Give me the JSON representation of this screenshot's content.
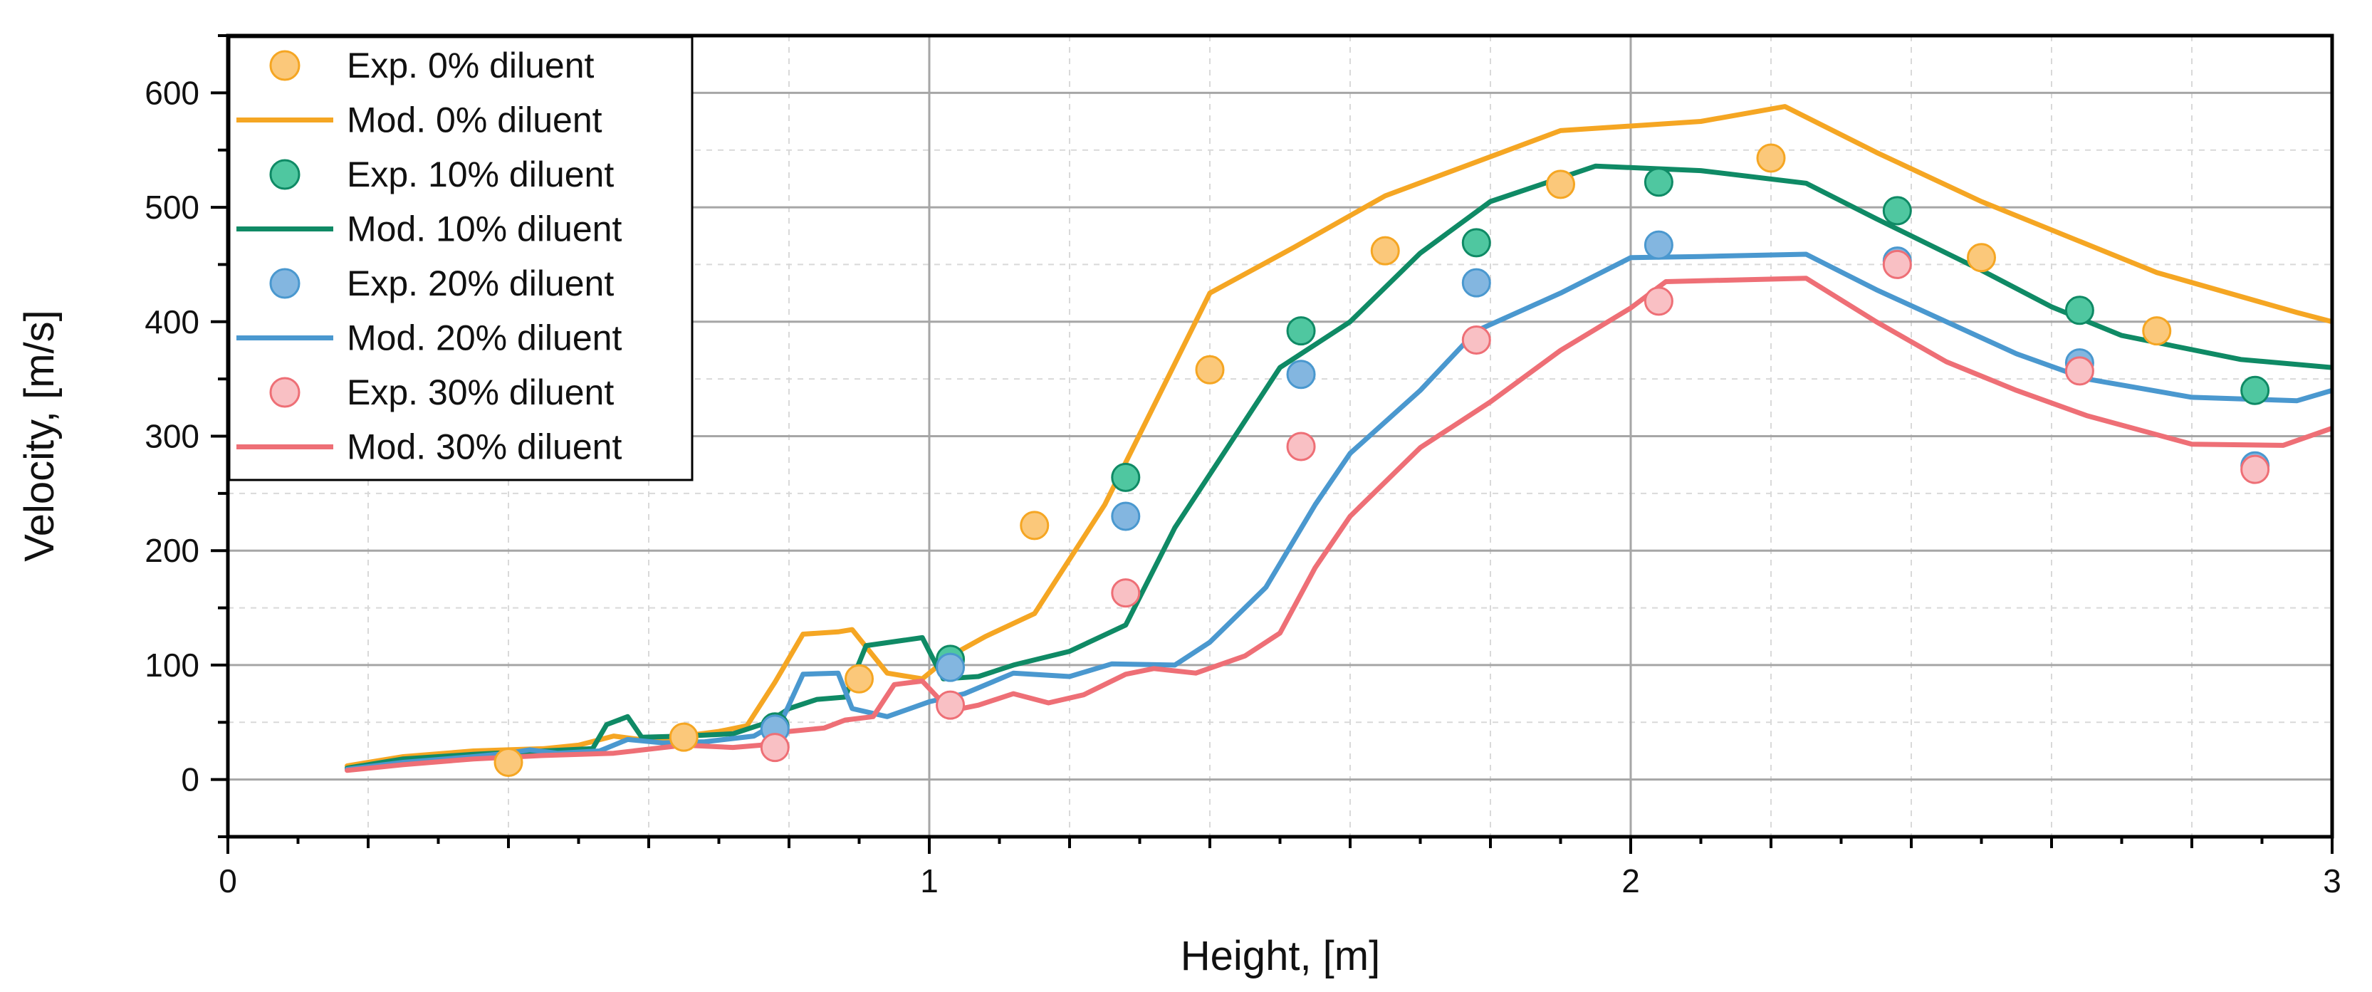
{
  "chart_data": {
    "type": "line+scatter",
    "title": "",
    "xlabel": "Height, [m]",
    "ylabel": "Velocity, [m/s]",
    "xlim": [
      0,
      3
    ],
    "ylim": [
      -50,
      650
    ],
    "x_ticks": [
      0,
      1,
      2,
      3
    ],
    "x_tick_labels": [
      "0",
      "1",
      "2",
      "3"
    ],
    "y_ticks": [
      0,
      100,
      200,
      300,
      400,
      500,
      600
    ],
    "y_tick_labels": [
      "0",
      "100",
      "200",
      "300",
      "400",
      "500",
      "600"
    ],
    "grid": true,
    "legend_position": "top-left",
    "legend": [
      "Exp. 0% diluent",
      "Mod. 0% diluent",
      "Exp. 10% diluent",
      "Mod. 10% diluent",
      "Exp. 20% diluent",
      "Mod. 20% diluent",
      "Exp. 30% diluent",
      "Mod. 30% diluent"
    ],
    "colors": {
      "orange": "#f5a623",
      "green": "#0f8a65",
      "blue": "#4a98cf",
      "red": "#ee6f76",
      "orange_fill": "#fbc87a",
      "green_fill": "#4fc7a0",
      "blue_fill": "#83b6e0",
      "red_fill": "#f9c0c4"
    },
    "series": [
      {
        "name": "Exp. 0% diluent",
        "kind": "scatter",
        "color": "orange",
        "points": [
          [
            0.4,
            15
          ],
          [
            0.65,
            37
          ],
          [
            0.9,
            88
          ],
          [
            1.15,
            222
          ],
          [
            1.4,
            358
          ],
          [
            1.65,
            462
          ],
          [
            1.9,
            520
          ],
          [
            2.2,
            543
          ],
          [
            2.5,
            456
          ],
          [
            2.75,
            392
          ]
        ]
      },
      {
        "name": "Mod. 0% diluent",
        "kind": "line",
        "color": "orange",
        "points": [
          [
            0.17,
            12
          ],
          [
            0.25,
            20
          ],
          [
            0.35,
            25
          ],
          [
            0.45,
            27
          ],
          [
            0.5,
            30
          ],
          [
            0.55,
            38
          ],
          [
            0.6,
            34
          ],
          [
            0.65,
            38
          ],
          [
            0.7,
            42
          ],
          [
            0.74,
            47
          ],
          [
            0.78,
            85
          ],
          [
            0.82,
            127
          ],
          [
            0.87,
            129
          ],
          [
            0.89,
            131
          ],
          [
            0.94,
            93
          ],
          [
            0.99,
            88
          ],
          [
            1.03,
            108
          ],
          [
            1.08,
            125
          ],
          [
            1.15,
            145
          ],
          [
            1.25,
            240
          ],
          [
            1.4,
            425
          ],
          [
            1.52,
            465
          ],
          [
            1.65,
            510
          ],
          [
            1.9,
            567
          ],
          [
            2.1,
            575
          ],
          [
            2.22,
            588
          ],
          [
            2.35,
            548
          ],
          [
            2.5,
            505
          ],
          [
            2.75,
            443
          ],
          [
            2.95,
            408
          ],
          [
            3.0,
            400
          ]
        ]
      },
      {
        "name": "Exp. 10% diluent",
        "kind": "scatter",
        "color": "green",
        "points": [
          [
            0.78,
            46
          ],
          [
            1.03,
            105
          ],
          [
            1.28,
            264
          ],
          [
            1.53,
            392
          ],
          [
            1.78,
            469
          ],
          [
            2.04,
            522
          ],
          [
            2.38,
            497
          ],
          [
            2.64,
            410
          ],
          [
            2.89,
            340
          ]
        ]
      },
      {
        "name": "Mod. 10% diluent",
        "kind": "line",
        "color": "green",
        "points": [
          [
            0.17,
            10
          ],
          [
            0.25,
            18
          ],
          [
            0.35,
            22
          ],
          [
            0.45,
            25
          ],
          [
            0.52,
            27
          ],
          [
            0.54,
            48
          ],
          [
            0.57,
            55
          ],
          [
            0.59,
            37
          ],
          [
            0.65,
            38
          ],
          [
            0.72,
            40
          ],
          [
            0.77,
            50
          ],
          [
            0.8,
            62
          ],
          [
            0.84,
            70
          ],
          [
            0.88,
            72
          ],
          [
            0.91,
            117
          ],
          [
            0.99,
            124
          ],
          [
            1.02,
            88
          ],
          [
            1.07,
            90
          ],
          [
            1.12,
            100
          ],
          [
            1.2,
            112
          ],
          [
            1.28,
            135
          ],
          [
            1.35,
            220
          ],
          [
            1.5,
            360
          ],
          [
            1.6,
            400
          ],
          [
            1.7,
            460
          ],
          [
            1.8,
            505
          ],
          [
            1.95,
            536
          ],
          [
            2.1,
            532
          ],
          [
            2.25,
            521
          ],
          [
            2.35,
            490
          ],
          [
            2.5,
            445
          ],
          [
            2.6,
            413
          ],
          [
            2.7,
            388
          ],
          [
            2.87,
            367
          ],
          [
            3.0,
            360
          ]
        ]
      },
      {
        "name": "Exp. 20% diluent",
        "kind": "scatter",
        "color": "blue",
        "points": [
          [
            0.78,
            44
          ],
          [
            1.03,
            98
          ],
          [
            1.28,
            230
          ],
          [
            1.53,
            354
          ],
          [
            1.78,
            434
          ],
          [
            2.04,
            467
          ],
          [
            2.38,
            453
          ],
          [
            2.64,
            364
          ],
          [
            2.89,
            274
          ]
        ]
      },
      {
        "name": "Mod. 20% diluent",
        "kind": "line",
        "color": "blue",
        "points": [
          [
            0.17,
            9
          ],
          [
            0.25,
            15
          ],
          [
            0.35,
            20
          ],
          [
            0.4,
            23
          ],
          [
            0.43,
            26
          ],
          [
            0.47,
            23
          ],
          [
            0.53,
            25
          ],
          [
            0.57,
            35
          ],
          [
            0.62,
            32
          ],
          [
            0.68,
            33
          ],
          [
            0.75,
            38
          ],
          [
            0.79,
            52
          ],
          [
            0.82,
            92
          ],
          [
            0.87,
            93
          ],
          [
            0.89,
            62
          ],
          [
            0.94,
            55
          ],
          [
            1.0,
            68
          ],
          [
            1.05,
            75
          ],
          [
            1.12,
            93
          ],
          [
            1.2,
            90
          ],
          [
            1.26,
            101
          ],
          [
            1.35,
            100
          ],
          [
            1.4,
            120
          ],
          [
            1.48,
            168
          ],
          [
            1.55,
            240
          ],
          [
            1.6,
            285
          ],
          [
            1.7,
            340
          ],
          [
            1.78,
            392
          ],
          [
            1.9,
            425
          ],
          [
            2.0,
            456
          ],
          [
            2.1,
            457
          ],
          [
            2.25,
            459
          ],
          [
            2.35,
            428
          ],
          [
            2.45,
            400
          ],
          [
            2.55,
            372
          ],
          [
            2.65,
            350
          ],
          [
            2.8,
            334
          ],
          [
            2.95,
            331
          ],
          [
            3.0,
            340
          ]
        ]
      },
      {
        "name": "Exp. 30% diluent",
        "kind": "scatter",
        "color": "red",
        "points": [
          [
            0.78,
            28
          ],
          [
            1.03,
            65
          ],
          [
            1.28,
            163
          ],
          [
            1.53,
            291
          ],
          [
            1.78,
            384
          ],
          [
            2.04,
            418
          ],
          [
            2.38,
            450
          ],
          [
            2.64,
            357
          ],
          [
            2.89,
            271
          ]
        ]
      },
      {
        "name": "Mod. 30% diluent",
        "kind": "line",
        "color": "red",
        "points": [
          [
            0.17,
            8
          ],
          [
            0.25,
            13
          ],
          [
            0.35,
            18
          ],
          [
            0.45,
            21
          ],
          [
            0.55,
            23
          ],
          [
            0.65,
            30
          ],
          [
            0.72,
            28
          ],
          [
            0.76,
            30
          ],
          [
            0.8,
            42
          ],
          [
            0.85,
            45
          ],
          [
            0.88,
            52
          ],
          [
            0.92,
            55
          ],
          [
            0.95,
            83
          ],
          [
            0.99,
            86
          ],
          [
            1.03,
            60
          ],
          [
            1.07,
            65
          ],
          [
            1.12,
            75
          ],
          [
            1.17,
            67
          ],
          [
            1.22,
            74
          ],
          [
            1.28,
            92
          ],
          [
            1.32,
            97
          ],
          [
            1.38,
            93
          ],
          [
            1.45,
            108
          ],
          [
            1.5,
            128
          ],
          [
            1.55,
            185
          ],
          [
            1.6,
            230
          ],
          [
            1.7,
            290
          ],
          [
            1.8,
            330
          ],
          [
            1.9,
            375
          ],
          [
            2.0,
            412
          ],
          [
            2.05,
            435
          ],
          [
            2.25,
            438
          ],
          [
            2.35,
            400
          ],
          [
            2.45,
            365
          ],
          [
            2.55,
            340
          ],
          [
            2.65,
            318
          ],
          [
            2.8,
            293
          ],
          [
            2.93,
            292
          ],
          [
            3.0,
            307
          ]
        ]
      }
    ]
  }
}
